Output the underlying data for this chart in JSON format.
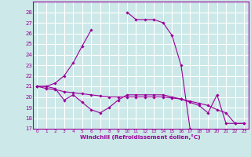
{
  "xlabel": "Windchill (Refroidissement éolien,°C)",
  "xlim": [
    -0.5,
    23.5
  ],
  "ylim": [
    17,
    29
  ],
  "yticks": [
    17,
    18,
    19,
    20,
    21,
    22,
    23,
    24,
    25,
    26,
    27,
    28
  ],
  "xticks": [
    0,
    1,
    2,
    3,
    4,
    5,
    6,
    7,
    8,
    9,
    10,
    11,
    12,
    13,
    14,
    15,
    16,
    17,
    18,
    19,
    20,
    21,
    22,
    23
  ],
  "bg_color": "#cce8e8",
  "grid_color": "#ffffff",
  "line_color": "#990099",
  "lines": [
    {
      "x": [
        0,
        1,
        2,
        3,
        4,
        5,
        6,
        7,
        8,
        9,
        10,
        11,
        12,
        13,
        14,
        15,
        16,
        17,
        18,
        19,
        20,
        21,
        22,
        23
      ],
      "y": [
        21.0,
        21.0,
        21.3,
        22.0,
        23.2,
        24.8,
        26.3,
        null,
        null,
        null,
        28.0,
        27.3,
        27.3,
        27.3,
        27.0,
        25.8,
        23.0,
        17.0,
        null,
        null,
        null,
        null,
        null,
        null
      ]
    },
    {
      "x": [
        0,
        1,
        2,
        3,
        4,
        5,
        6,
        7,
        8,
        9,
        10,
        11,
        12,
        13,
        14,
        15,
        16,
        17,
        18,
        19,
        20,
        21,
        22,
        23
      ],
      "y": [
        21.0,
        20.8,
        20.7,
        20.5,
        20.4,
        20.3,
        20.2,
        20.1,
        20.0,
        20.0,
        20.0,
        20.0,
        20.0,
        20.0,
        20.0,
        19.9,
        19.8,
        19.6,
        19.4,
        19.2,
        18.8,
        18.5,
        17.5,
        17.5
      ]
    },
    {
      "x": [
        0,
        1,
        2,
        3,
        4,
        5,
        6,
        7,
        8,
        9,
        10,
        11,
        12,
        13,
        14,
        15,
        16,
        17,
        18,
        19,
        20,
        21,
        22,
        23
      ],
      "y": [
        21.0,
        21.0,
        20.8,
        19.7,
        20.2,
        19.5,
        18.8,
        18.5,
        19.0,
        19.7,
        20.2,
        20.2,
        20.2,
        20.2,
        20.2,
        20.0,
        19.8,
        19.5,
        19.2,
        18.5,
        20.2,
        17.5,
        17.5,
        17.5
      ]
    }
  ]
}
